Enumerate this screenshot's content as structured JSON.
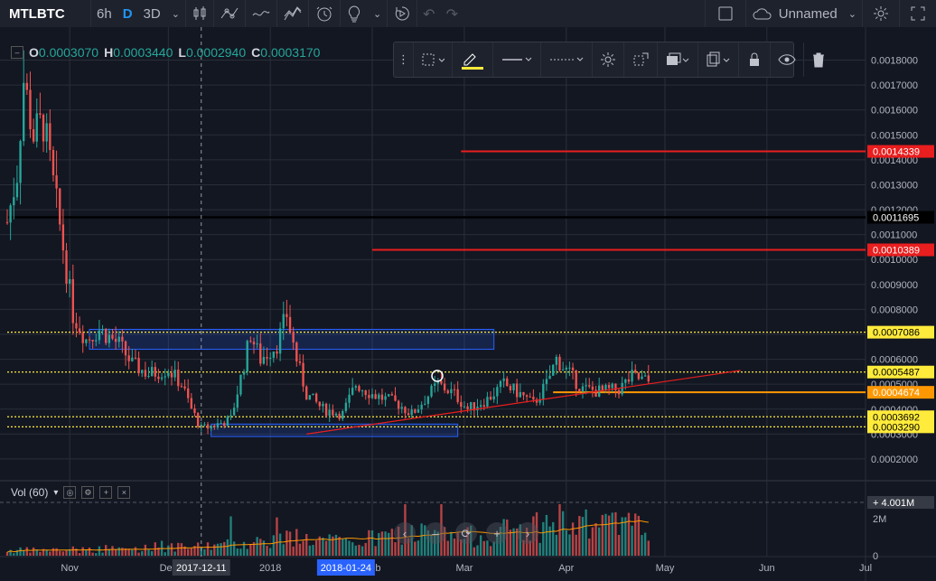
{
  "toolbar": {
    "symbol": "MTLBTC",
    "intervals": [
      "6h",
      "D",
      "3D"
    ],
    "active_interval": "D",
    "layout_name": "Unnamed"
  },
  "legend": {
    "open_label": "O",
    "open": "0.0003070",
    "high_label": "H",
    "high": "0.0003440",
    "low_label": "L",
    "low": "0.0002940",
    "close_label": "C",
    "close": "0.0003170"
  },
  "volume_legend": {
    "label": "Vol (60)",
    "last_value": "4.001M"
  },
  "colors": {
    "background": "#131722",
    "up": "#26a69a",
    "down": "#ef5350",
    "grid": "#2a2e39",
    "accent": "#2196f3"
  },
  "chart_data": {
    "type": "candlestick",
    "y_ticks": [
      "0.0018000",
      "0.0017000",
      "0.0016000",
      "0.0015000",
      "0.0014000",
      "0.0013000",
      "0.0012000",
      "0.0011000",
      "0.0010000",
      "0.0009000",
      "0.0008000",
      "0.0007000",
      "0.0006000",
      "0.0005000",
      "0.0004000",
      "0.0003000",
      "0.0002000"
    ],
    "ylim": [
      0.00012,
      0.00186
    ],
    "x_ticks": [
      "Nov",
      "Dec",
      "2018",
      "Feb",
      "Mar",
      "Apr",
      "May",
      "Jun",
      "Jul"
    ],
    "x_tick_dates": [
      "2017-11-01",
      "2017-12-01",
      "2018-01-01",
      "2018-02-01",
      "2018-03-01",
      "2018-04-01",
      "2018-05-01",
      "2018-06-01",
      "2018-07-01"
    ],
    "x_start_date": "2017-10-13",
    "x_end_date": "2018-07-01",
    "crosshair": {
      "date_label": "2017-12-11",
      "date": "2017-12-11"
    },
    "highlighted_date_label": {
      "label": "2018-01-24",
      "date": "2018-01-24"
    },
    "price_levels": [
      {
        "price": 0.0014339,
        "label": "0.0014339",
        "color": "#e91e1e",
        "style": "solid",
        "from_date": "2018-02-28"
      },
      {
        "price": 0.0011695,
        "label": "0.0011695",
        "color": "#000000",
        "style": "solid",
        "from_date": "2017-10-13"
      },
      {
        "price": 0.0010389,
        "label": "0.0010389",
        "color": "#e91e1e",
        "style": "solid",
        "from_date": "2018-02-01"
      },
      {
        "price": 0.0007086,
        "label": "0.0007086",
        "color": "#ffeb3b",
        "style": "dotted",
        "from_date": "2017-10-13"
      },
      {
        "price": 0.0005487,
        "label": "0.0005487",
        "color": "#ffeb3b",
        "style": "dotted",
        "from_date": "2017-10-13"
      },
      {
        "price": 0.0004674,
        "label": "0.0004674",
        "color": "#ff9800",
        "style": "solid",
        "from_date": "2018-03-28"
      },
      {
        "price": 0.0003692,
        "label": "0.0003692",
        "color": "#ffeb3b",
        "style": "dotted",
        "from_date": "2017-10-13"
      },
      {
        "price": 0.000329,
        "label": "0.0003290",
        "color": "#ffeb3b",
        "style": "dotted",
        "from_date": "2017-10-13"
      }
    ],
    "zones": [
      {
        "from_date": "2017-11-07",
        "to_date": "2018-03-10",
        "price_top": 0.00072,
        "price_bottom": 0.00064
      },
      {
        "from_date": "2017-12-14",
        "to_date": "2018-02-27",
        "price_top": 0.00034,
        "price_bottom": 0.00029
      }
    ],
    "trendline": {
      "from_date": "2018-01-12",
      "from_price": 0.0003,
      "to_date": "2018-05-24",
      "to_price": 0.000555
    },
    "volume_axis": {
      "ticks": [
        "2M",
        "0"
      ],
      "max_label": "4.001M"
    },
    "price_path": [
      [
        "2017-10-13",
        0.00115
      ],
      [
        "2017-10-16",
        0.00135
      ],
      [
        "2017-10-18",
        0.00172
      ],
      [
        "2017-10-21",
        0.0015
      ],
      [
        "2017-10-24",
        0.00155
      ],
      [
        "2017-10-27",
        0.0013
      ],
      [
        "2017-10-30",
        0.00105
      ],
      [
        "2017-11-02",
        0.00078
      ],
      [
        "2017-11-06",
        0.00068
      ],
      [
        "2017-11-10",
        0.00072
      ],
      [
        "2017-11-16",
        0.00066
      ],
      [
        "2017-11-20",
        0.00058
      ],
      [
        "2017-11-25",
        0.00054
      ],
      [
        "2017-12-01",
        0.00056
      ],
      [
        "2017-12-05",
        0.0005
      ],
      [
        "2017-12-08",
        0.0004
      ],
      [
        "2017-12-11",
        0.00032
      ],
      [
        "2017-12-16",
        0.00034
      ],
      [
        "2017-12-20",
        0.00036
      ],
      [
        "2017-12-24",
        0.00058
      ],
      [
        "2017-12-26",
        0.0007
      ],
      [
        "2017-12-29",
        0.0006
      ],
      [
        "2018-01-03",
        0.00066
      ],
      [
        "2018-01-06",
        0.00078
      ],
      [
        "2018-01-09",
        0.0006
      ],
      [
        "2018-01-12",
        0.00046
      ],
      [
        "2018-01-17",
        0.0004
      ],
      [
        "2018-01-23",
        0.00038
      ],
      [
        "2018-01-27",
        0.0005
      ],
      [
        "2018-02-01",
        0.00046
      ],
      [
        "2018-02-05",
        0.00044
      ],
      [
        "2018-02-09",
        0.00042
      ],
      [
        "2018-02-13",
        0.00038
      ],
      [
        "2018-02-17",
        0.00044
      ],
      [
        "2018-02-21",
        0.0005
      ],
      [
        "2018-02-26",
        0.00046
      ],
      [
        "2018-03-02",
        0.0004
      ],
      [
        "2018-03-08",
        0.00044
      ],
      [
        "2018-03-13",
        0.0005
      ],
      [
        "2018-03-18",
        0.00046
      ],
      [
        "2018-03-22",
        0.00042
      ],
      [
        "2018-03-26",
        0.0005
      ],
      [
        "2018-03-29",
        0.0006
      ],
      [
        "2018-04-02",
        0.00054
      ],
      [
        "2018-04-06",
        0.00048
      ],
      [
        "2018-04-12",
        0.00047
      ],
      [
        "2018-04-17",
        0.00048
      ],
      [
        "2018-04-21",
        0.00053
      ],
      [
        "2018-04-26",
        0.00051
      ]
    ],
    "volume_profile": [
      [
        "2017-10-13",
        0.1
      ],
      [
        "2017-11-10",
        0.12
      ],
      [
        "2017-12-10",
        0.17
      ],
      [
        "2018-01-08",
        0.35
      ],
      [
        "2018-01-24",
        0.25
      ],
      [
        "2018-02-13",
        0.45
      ],
      [
        "2018-03-01",
        0.35
      ],
      [
        "2018-03-25",
        0.6
      ],
      [
        "2018-04-26",
        0.55
      ]
    ]
  }
}
